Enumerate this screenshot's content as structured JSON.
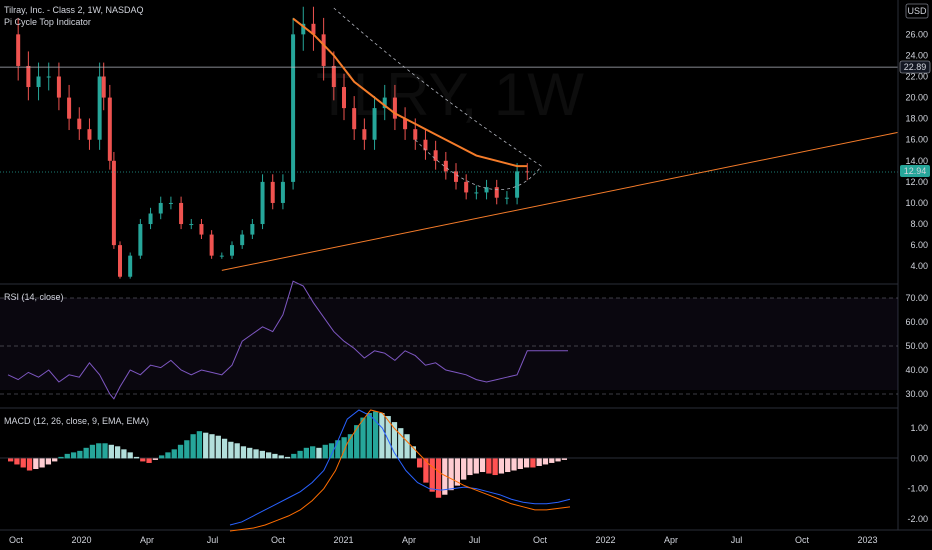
{
  "header": {
    "title": "Tilray, Inc. - Class 2, 1W, NASDAQ",
    "indicator": "Pi Cycle Top Indicator",
    "currency": "USD"
  },
  "watermark": "TLRY, 1W",
  "price_badges": {
    "level": "22.89",
    "last": "12.94"
  },
  "colors": {
    "up": "#26a69a",
    "up_strong": "#0bbf3a",
    "down": "#ef5350",
    "ma": "#f57c2a",
    "rsi": "#7e57c2",
    "macd": "#2962ff",
    "signal": "#ff6d00",
    "badge_green": "#26a69a"
  },
  "rsi": {
    "label": "RSI (14, close)",
    "ticks": [
      "70.00",
      "60.00",
      "50.00",
      "40.00",
      "30.00"
    ]
  },
  "macd": {
    "label": "MACD (12, 26, close, 9, EMA, EMA)",
    "ticks": [
      "1.00",
      "0.00",
      "-1.00",
      "-2.00"
    ]
  },
  "x_ticks": [
    "Oct",
    "2020",
    "Apr",
    "Jul",
    "Oct",
    "2021",
    "Apr",
    "Jul",
    "Oct",
    "2022",
    "Apr",
    "Jul",
    "Oct",
    "2023"
  ],
  "chart_data": [
    {
      "type": "line",
      "title": "Tilray, Inc. - Class 2, 1W, NASDAQ",
      "x_unit": "weeks",
      "y_ticks": [
        "26.00",
        "24.00",
        "22.00",
        "20.00",
        "18.00",
        "16.00",
        "14.00",
        "12.00",
        "10.00",
        "8.00",
        "6.00",
        "4.00"
      ],
      "ylim": [
        2.5,
        28.5
      ],
      "series": [
        {
          "name": "close",
          "x": [
            0,
            5,
            10,
            15,
            20,
            25,
            30,
            35,
            40,
            45,
            47,
            50,
            52,
            55,
            60,
            65,
            70,
            75,
            80,
            85,
            90,
            95,
            100,
            105,
            110,
            115,
            120,
            125,
            130,
            135,
            140,
            145,
            150,
            155,
            160,
            165,
            170,
            175,
            180,
            185,
            190,
            195,
            200,
            205,
            210,
            215,
            220,
            225,
            230,
            235,
            240,
            245,
            250,
            255,
            260,
            265,
            270,
            275
          ],
          "y": [
            26,
            23,
            21,
            22,
            22,
            20,
            18,
            17,
            16,
            22,
            20,
            14,
            6,
            3,
            5,
            8,
            9,
            10,
            10,
            8,
            8,
            7,
            5,
            5,
            6,
            7,
            8,
            12,
            10,
            12,
            26,
            27,
            26,
            23,
            21,
            19,
            17,
            16,
            19,
            20,
            18,
            17,
            16,
            15,
            14,
            13,
            12,
            11,
            11,
            11.5,
            10.5,
            10.5,
            13,
            12.94,
            12.94,
            12.94,
            12.94,
            12.94
          ]
        }
      ],
      "horizontal_levels": [
        22.89,
        12.94
      ]
    },
    {
      "type": "line",
      "title": "RSI (14, close)",
      "ylim": [
        25,
        75
      ],
      "y_ticks": [
        70,
        60,
        50,
        40,
        30
      ],
      "bands": [
        30,
        50,
        70
      ],
      "x": [
        0,
        5,
        10,
        15,
        20,
        25,
        30,
        35,
        40,
        45,
        50,
        52,
        55,
        60,
        65,
        70,
        75,
        80,
        85,
        90,
        95,
        100,
        105,
        110,
        115,
        120,
        125,
        130,
        135,
        140,
        145,
        150,
        155,
        160,
        165,
        170,
        175,
        180,
        185,
        190,
        195,
        200,
        205,
        210,
        215,
        220,
        225,
        230,
        235,
        240,
        245,
        250,
        255,
        260,
        265,
        270,
        275
      ],
      "values": [
        38,
        36,
        39,
        37,
        40,
        35,
        38,
        37,
        43,
        38,
        30,
        28,
        33,
        40,
        38,
        42,
        41,
        44,
        40,
        38,
        40,
        39,
        38,
        42,
        52,
        55,
        58,
        56,
        63,
        77,
        75,
        68,
        62,
        56,
        52,
        49,
        45,
        48,
        47,
        44,
        48,
        46,
        42,
        43,
        40,
        39,
        38,
        36,
        35,
        36,
        37,
        38,
        48,
        48,
        48,
        48,
        48
      ]
    },
    {
      "type": "bar",
      "title": "MACD (12, 26, close, 9, EMA, EMA)",
      "ylim": [
        -2.3,
        1.6
      ],
      "y_ticks": [
        1.0,
        0.0,
        -1.0,
        -2.0
      ],
      "histogram": [
        -0.1,
        -0.2,
        -0.3,
        -0.4,
        -0.35,
        -0.3,
        -0.2,
        -0.1,
        0.05,
        0.15,
        0.2,
        0.25,
        0.35,
        0.45,
        0.5,
        0.5,
        0.45,
        0.4,
        0.3,
        0.2,
        0.05,
        -0.1,
        -0.15,
        -0.05,
        0.1,
        0.2,
        0.3,
        0.45,
        0.6,
        0.8,
        0.9,
        0.85,
        0.8,
        0.75,
        0.65,
        0.55,
        0.5,
        0.4,
        0.35,
        0.3,
        0.25,
        0.2,
        0.15,
        0.1,
        0.05,
        0.15,
        0.25,
        0.35,
        0.4,
        0.35,
        0.45,
        0.5,
        0.6,
        0.7,
        0.8,
        1.1,
        1.35,
        1.5,
        1.55,
        1.5,
        1.4,
        1.2,
        1.0,
        0.8,
        0.4,
        -0.3,
        -0.8,
        -1.1,
        -1.3,
        -1.2,
        -1.05,
        -0.9,
        -0.7,
        -0.55,
        -0.5,
        -0.45,
        -0.5,
        -0.55,
        -0.5,
        -0.45,
        -0.4,
        -0.35,
        -0.3,
        -0.3,
        -0.25,
        -0.2,
        -0.15,
        -0.1,
        -0.05
      ],
      "macd_line": [
        -2.2,
        -2.1,
        -1.9,
        -1.7,
        -1.5,
        -1.3,
        -1.1,
        -0.8,
        -0.4,
        0.4,
        1.3,
        1.6,
        1.4,
        1.0,
        0.2,
        -0.4,
        -0.8,
        -1.0,
        -1.05,
        -1.0,
        -0.95,
        -1.0,
        -1.1,
        -1.2,
        -1.35,
        -1.45,
        -1.5,
        -1.5,
        -1.45,
        -1.35
      ],
      "signal_line": [
        -2.4,
        -2.35,
        -2.3,
        -2.2,
        -2.05,
        -1.9,
        -1.7,
        -1.4,
        -1.0,
        -0.4,
        0.5,
        1.1,
        1.6,
        1.5,
        1.0,
        0.6,
        0.2,
        -0.2,
        -0.5,
        -0.7,
        -0.9,
        -1.05,
        -1.2,
        -1.35,
        -1.5,
        -1.6,
        -1.7,
        -1.7,
        -1.65,
        -1.6
      ]
    }
  ]
}
